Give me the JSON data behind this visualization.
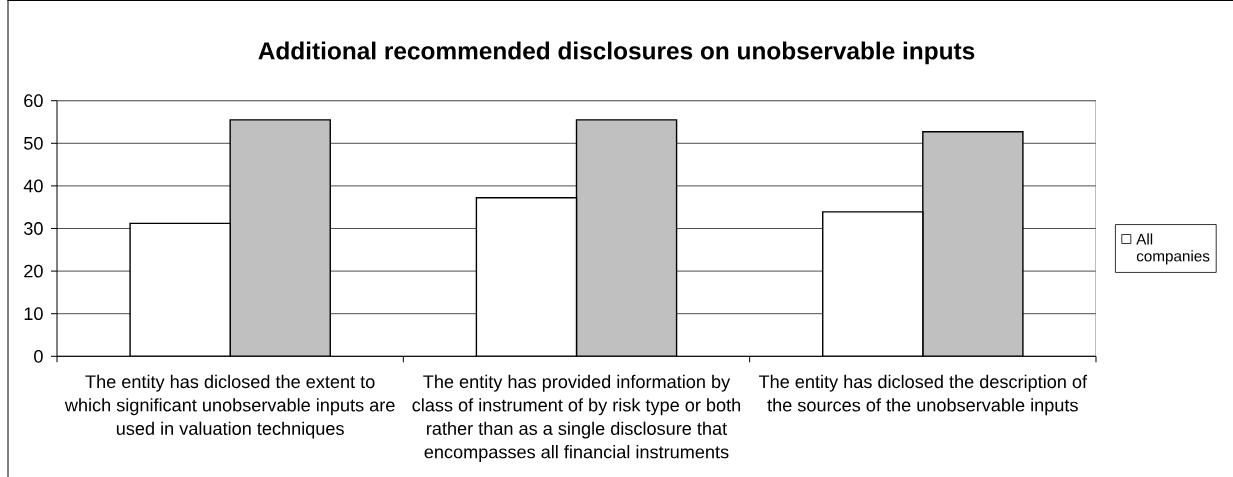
{
  "chart_data": {
    "type": "bar",
    "title": "Additional recommended disclosures on unobservable inputs",
    "categories": [
      "The entity has diclosed the extent to which significant unobservable inputs are used in valuation techniques",
      "The entity has provided information by class of instrument of by risk type or both rather than as a single disclosure that encompasses all financial instruments",
      "The entity has diclosed the description of the sources of the unobservable inputs"
    ],
    "series": [
      {
        "name": "All companies",
        "color": "#ffffff",
        "values": [
          31.2,
          37.2,
          33.9
        ]
      },
      {
        "color": "#c0c0c0",
        "values": [
          55.5,
          55.5,
          52.7
        ]
      }
    ],
    "ylim": [
      0,
      60
    ],
    "yticks": [
      0,
      10,
      20,
      30,
      40,
      50,
      60
    ],
    "grid": "y",
    "legend": "right"
  }
}
